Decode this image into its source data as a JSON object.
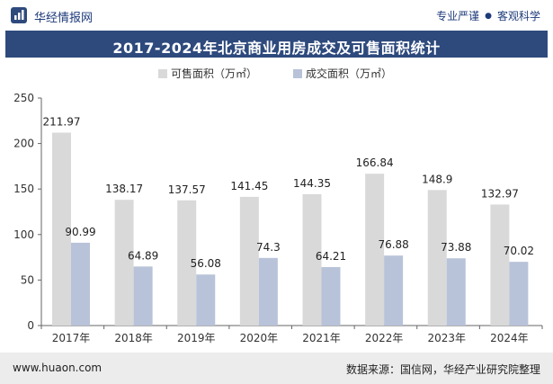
{
  "header": {
    "site_name": "华经情报网",
    "tag_left": "专业严谨",
    "tag_separator": "●",
    "tag_right": "客观科学"
  },
  "chart_data": {
    "type": "bar",
    "title": "2017-2024年北京商业用房成交及可售面积统计",
    "categories": [
      "2017年",
      "2018年",
      "2019年",
      "2020年",
      "2021年",
      "2022年",
      "2023年",
      "2024年"
    ],
    "series": [
      {
        "name": "可售面积（万㎡）",
        "color": "#d9d9d9",
        "values": [
          211.97,
          138.17,
          137.57,
          141.45,
          144.35,
          166.84,
          148.9,
          132.97
        ]
      },
      {
        "name": "成交面积（万㎡）",
        "color": "#b8c3d9",
        "values": [
          90.99,
          64.89,
          56.08,
          74.3,
          64.21,
          76.88,
          73.88,
          70.02
        ]
      }
    ],
    "yticks": [
      0,
      50,
      100,
      150,
      200,
      250
    ],
    "ylim": [
      0,
      250
    ],
    "xlabel": "",
    "ylabel": "",
    "legend_position": "top-center"
  },
  "footer": {
    "url": "www.huaon.com",
    "source": "数据来源：国信网，华经产业研究院整理"
  }
}
